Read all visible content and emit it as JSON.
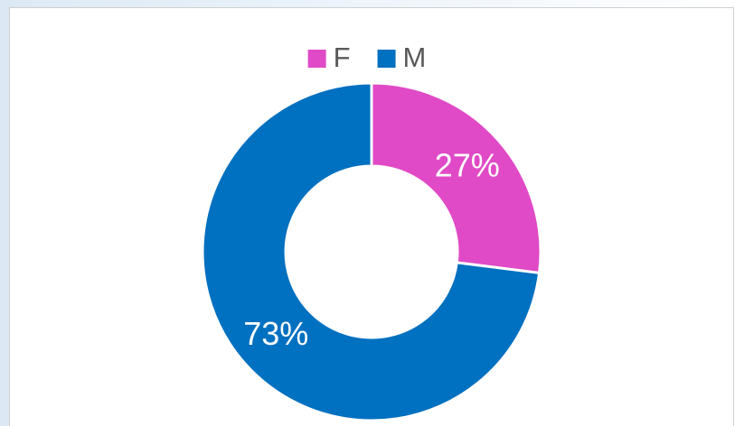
{
  "chart_data": {
    "type": "donut",
    "categories": [
      "F",
      "M"
    ],
    "values": [
      27,
      73
    ],
    "value_labels": [
      "27%",
      "73%"
    ],
    "colors": [
      "#e04ac6",
      "#0070c0"
    ],
    "legend": "top"
  }
}
